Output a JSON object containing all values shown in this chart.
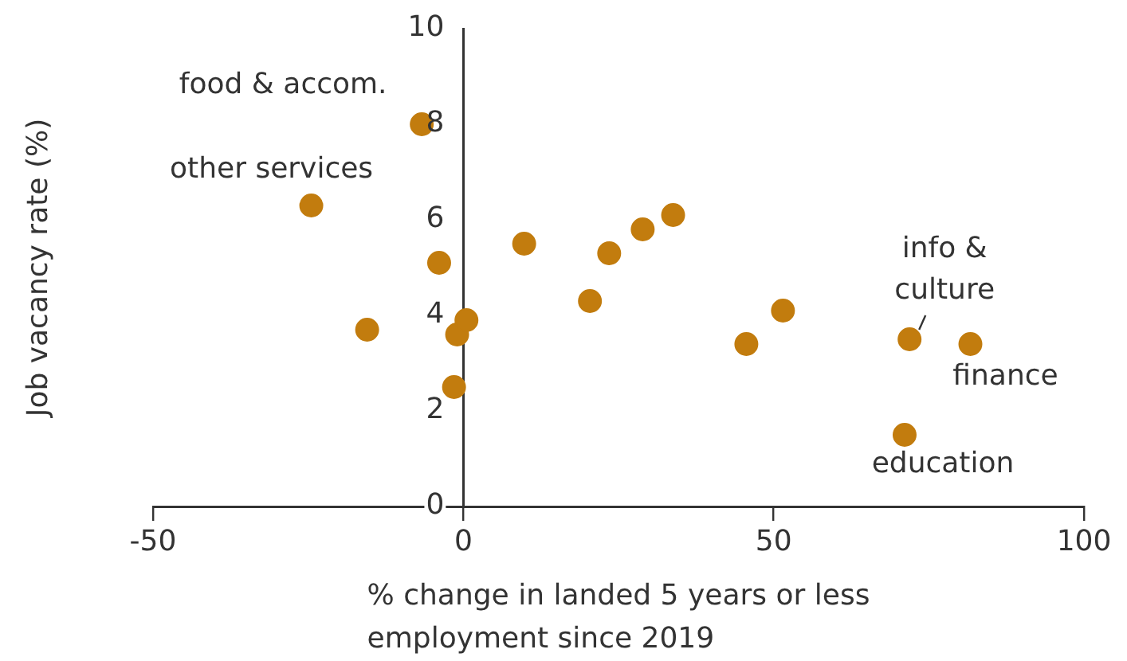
{
  "chart_data": {
    "type": "scatter",
    "xlabel": "% change in landed 5 years or less employment since 2019",
    "ylabel": "Job vacancy rate (%)",
    "series": [
      {
        "color": "#c27c0e",
        "x": [
          -6.7,
          -24.5,
          -15.5,
          -3.9,
          -1,
          0.5,
          -1.5,
          9.8,
          20.4,
          23.5,
          28.9,
          33.8,
          45.6,
          51.5,
          71.9,
          81.7,
          71.1
        ],
        "values": [
          8.0,
          6.3,
          3.7,
          5.1,
          3.6,
          3.9,
          2.5,
          5.5,
          4.3,
          5.3,
          5.8,
          6.1,
          3.4,
          4.1,
          3.5,
          3.4,
          1.5
        ]
      }
    ],
    "xlim": [
      -50,
      100
    ],
    "xticks": [
      -50,
      0,
      50,
      100
    ],
    "ylim": [
      0,
      10
    ],
    "yticks": [
      0,
      2,
      4,
      6,
      8,
      10
    ],
    "grid": false,
    "legend": false,
    "marker": "circle",
    "annotations": [
      {
        "text": "food & accom.",
        "x": -6.7,
        "y": 8.0
      },
      {
        "text": "other services",
        "x": -24.5,
        "y": 6.3
      },
      {
        "text": "info & culture",
        "x": 71.9,
        "y": 3.5
      },
      {
        "text": "finance",
        "x": 81.7,
        "y": 3.4
      },
      {
        "text": "education",
        "x": 71.1,
        "y": 1.5
      }
    ]
  }
}
